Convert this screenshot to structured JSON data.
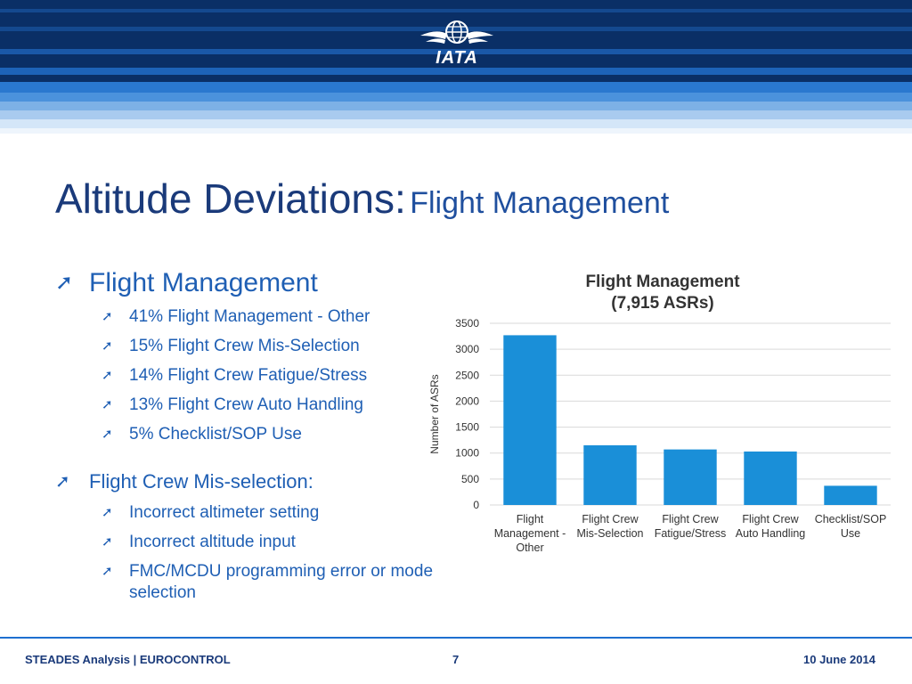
{
  "header": {
    "logo_text": "IATA",
    "colors": {
      "dark": "#0a2a5e",
      "mid": "#0f4c9a",
      "light": "#5a9ee0",
      "pale": "#cfe3f6"
    }
  },
  "title": {
    "main": "Altitude Deviations:",
    "sub": "Flight Management"
  },
  "bullets": {
    "group1": {
      "heading": "Flight Management",
      "items": [
        "41% Flight Management - Other",
        "15% Flight Crew Mis-Selection",
        "14% Flight Crew Fatigue/Stress",
        "13% Flight Crew Auto Handling",
        "5% Checklist/SOP Use"
      ]
    },
    "group2": {
      "heading": "Flight Crew Mis-selection:",
      "items": [
        "Incorrect altimeter setting",
        "Incorrect altitude input",
        "FMC/MCDU programming error or mode selection"
      ]
    }
  },
  "chart_data": {
    "type": "bar",
    "title_line1": "Flight Management",
    "title_line2": "(7,915 ASRs)",
    "ylabel": "Number of ASRs",
    "xlabel": "",
    "ylim": [
      0,
      3500
    ],
    "yticks": [
      0,
      500,
      1000,
      1500,
      2000,
      2500,
      3000,
      3500
    ],
    "grid": true,
    "bar_color": "#1a8fd8",
    "categories": [
      [
        "Flight",
        "Management -",
        "Other"
      ],
      [
        "Flight Crew",
        "Mis-Selection"
      ],
      [
        "Flight Crew",
        "Fatigue/Stress"
      ],
      [
        "Flight Crew",
        "Auto Handling"
      ],
      [
        "Checklist/SOP",
        "Use"
      ]
    ],
    "values": [
      3270,
      1150,
      1070,
      1030,
      370
    ]
  },
  "footer": {
    "left": "STEADES Analysis | EUROCONTROL",
    "page": "7",
    "date": "10 June 2014"
  }
}
